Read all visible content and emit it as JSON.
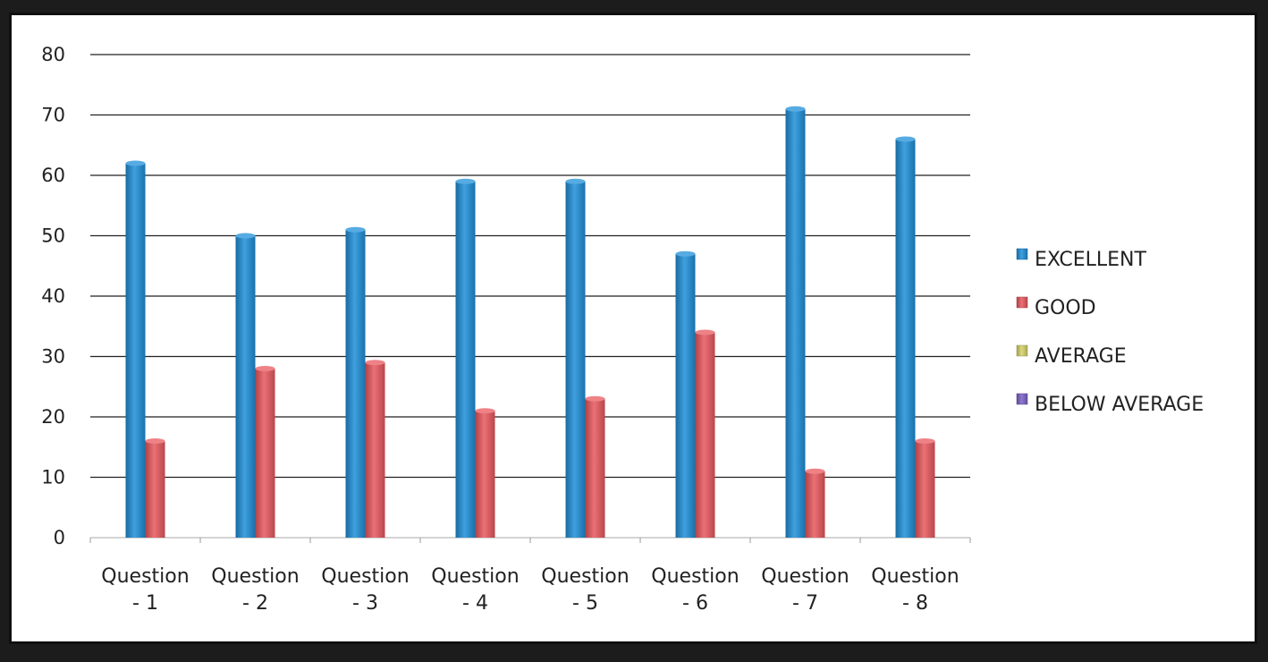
{
  "chart_data": {
    "type": "bar",
    "categories": [
      "Question - 1",
      "Question - 2",
      "Question - 3",
      "Question - 4",
      "Question - 5",
      "Question - 6",
      "Question - 7",
      "Question - 8"
    ],
    "category_lines": [
      [
        "Question",
        "- 1"
      ],
      [
        "Question",
        "- 2"
      ],
      [
        "Question",
        "- 3"
      ],
      [
        "Question",
        "- 4"
      ],
      [
        "Question",
        "- 5"
      ],
      [
        "Question",
        "- 6"
      ],
      [
        "Question",
        "- 7"
      ],
      [
        "Question",
        "- 8"
      ]
    ],
    "series": [
      {
        "name": "EXCELLENT",
        "color": "#1e8fd8",
        "values": [
          62,
          50,
          51,
          59,
          59,
          47,
          71,
          66
        ]
      },
      {
        "name": "GOOD",
        "color": "#e8585e",
        "values": [
          16,
          28,
          29,
          21,
          23,
          34,
          11,
          16
        ]
      },
      {
        "name": "AVERAGE",
        "color": "#d6d26a",
        "values": [
          0,
          0,
          0,
          0,
          0,
          0,
          0,
          0
        ]
      },
      {
        "name": "BELOW AVERAGE",
        "color": "#7b62c8",
        "values": [
          0,
          0,
          0,
          0,
          0,
          0,
          0,
          0
        ]
      }
    ],
    "yticks": [
      0,
      10,
      20,
      30,
      40,
      50,
      60,
      70,
      80
    ],
    "ylim": [
      0,
      80
    ],
    "grid": true,
    "legend": "right",
    "title": "",
    "xlabel": "",
    "ylabel": ""
  }
}
